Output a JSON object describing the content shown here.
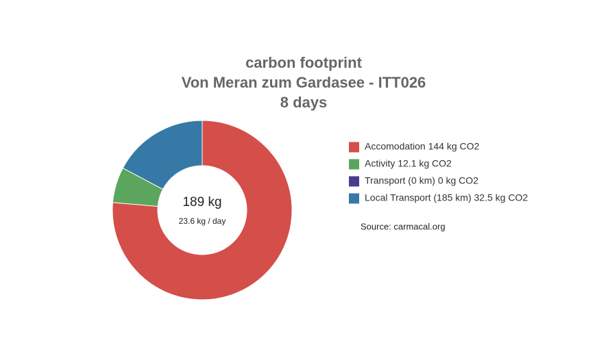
{
  "chart_data": {
    "type": "donut",
    "title_lines": [
      "carbon footprint",
      "Von Meran zum Gardasee - ITT026",
      "8 days"
    ],
    "categories": [
      "Accomodation 144 kg CO2",
      "Activity 12.1 kg CO2",
      "Transport (0 km) 0 kg CO2",
      "Local Transport (185 km) 32.5 kg CO2"
    ],
    "values": [
      144,
      12.1,
      0,
      32.5
    ],
    "colors": [
      "#d44e4a",
      "#5ba55e",
      "#4a3c8c",
      "#3679a6"
    ],
    "center_label": "189 kg",
    "center_sublabel": "23.6 kg / day",
    "source": "Source: carmacal.org",
    "legend": "right"
  }
}
